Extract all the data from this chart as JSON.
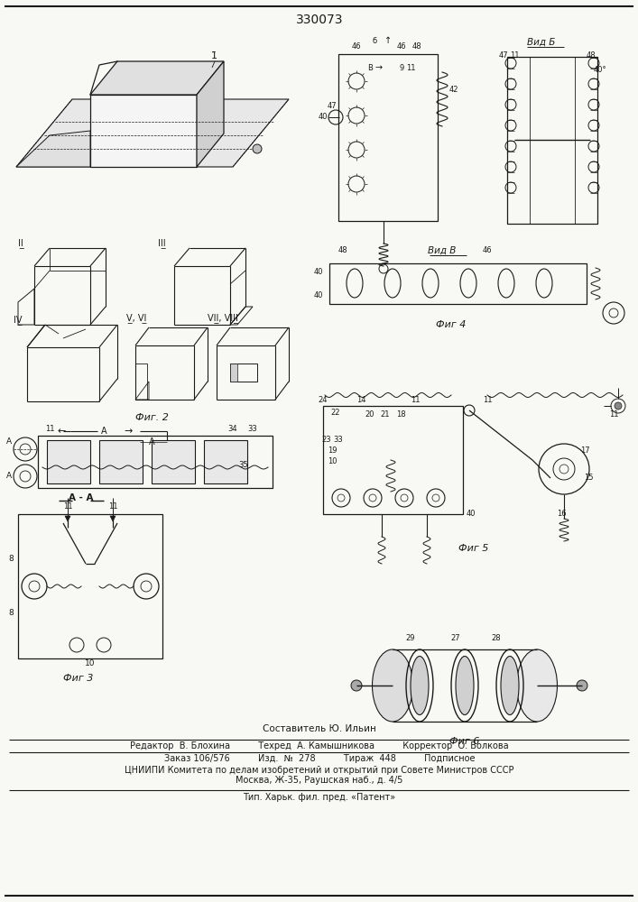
{
  "title": "330073",
  "bg_color": "#f8f8f5",
  "line_color": "#1a1a1a",
  "footer_lines": [
    "Составитель Ю. Ильин",
    "Редактор  В. Блохина          Техред  А. Камышникова          Корректор  О. Волкова",
    "Заказ 106/576          Изд.  №  278          Тираж  448          Подписное",
    "ЦНИИПИ Комитета по делам изобретений и открытий при Совете Министров СССР",
    "Москва, Ж-35, Раушская наб., д. 4/5",
    "Тип. Харьк. фил. пред. «Патент»"
  ]
}
